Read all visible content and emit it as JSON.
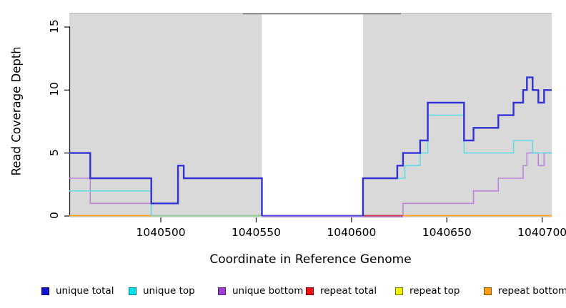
{
  "chart_data": {
    "type": "line",
    "subtype": "step-coverage",
    "xlabel": "Coordinate in Reference Genome",
    "ylabel": "Read Coverage Depth",
    "xlim": [
      1040452,
      1040705
    ],
    "ylim": [
      0,
      16
    ],
    "grid": false,
    "x_ticks": [
      1040500,
      1040550,
      1040600,
      1040650,
      1040700
    ],
    "x_tick_labels": [
      "1040500",
      "1040550",
      "1040600",
      "1040650",
      "1040700"
    ],
    "y_ticks": [
      0,
      5,
      10,
      15
    ],
    "y_tick_labels": [
      "0",
      "5",
      "10",
      "15"
    ],
    "covered_region_color": "#d9d9d9",
    "coverage_gap": {
      "x1": 1040553,
      "x2": 1040606
    },
    "top_edge_line_color": "#c4c4c4",
    "top_dark_segment": {
      "x1": 1040543,
      "x2": 1040626,
      "color": "#8a8a8a"
    },
    "series": [
      {
        "name": "unique total",
        "color": "#3232d8",
        "width": 2.4,
        "steps": [
          [
            1040452,
            5
          ],
          [
            1040463,
            3
          ],
          [
            1040495,
            1
          ],
          [
            1040509,
            4
          ],
          [
            1040512,
            3
          ],
          [
            1040553,
            0
          ],
          [
            1040606,
            3
          ],
          [
            1040624,
            4
          ],
          [
            1040627,
            5
          ],
          [
            1040636,
            6
          ],
          [
            1040640,
            9
          ],
          [
            1040659,
            6
          ],
          [
            1040664,
            7
          ],
          [
            1040677,
            8
          ],
          [
            1040685,
            9
          ],
          [
            1040690,
            10
          ],
          [
            1040692,
            11
          ],
          [
            1040695,
            10
          ],
          [
            1040698,
            9
          ],
          [
            1040701,
            10
          ],
          [
            1040705,
            10
          ]
        ]
      },
      {
        "name": "unique top",
        "color": "#60dce4",
        "width": 1.6,
        "steps": [
          [
            1040452,
            2
          ],
          [
            1040495,
            0
          ],
          [
            1040606,
            3
          ],
          [
            1040628,
            4
          ],
          [
            1040636,
            5
          ],
          [
            1040640,
            8
          ],
          [
            1040659,
            5
          ],
          [
            1040685,
            6
          ],
          [
            1040695,
            5
          ],
          [
            1040705,
            5
          ]
        ]
      },
      {
        "name": "unique bottom",
        "color": "#bd84d8",
        "width": 1.6,
        "steps": [
          [
            1040452,
            3
          ],
          [
            1040463,
            1
          ],
          [
            1040509,
            4
          ],
          [
            1040512,
            3
          ],
          [
            1040553,
            0
          ],
          [
            1040627,
            1
          ],
          [
            1040664,
            2
          ],
          [
            1040677,
            3
          ],
          [
            1040690,
            4
          ],
          [
            1040692,
            5
          ],
          [
            1040698,
            4
          ],
          [
            1040701,
            5
          ],
          [
            1040705,
            5
          ]
        ]
      },
      {
        "name": "repeat total",
        "color": "#e32222",
        "width": 1.6,
        "steps": [
          [
            1040452,
            0
          ],
          [
            1040705,
            0
          ]
        ]
      },
      {
        "name": "repeat top",
        "color": "#e8e832",
        "width": 1.6,
        "steps": [
          [
            1040452,
            0
          ],
          [
            1040705,
            0
          ]
        ]
      },
      {
        "name": "repeat bottom",
        "color": "#ffa125",
        "width": 2,
        "steps": [
          [
            1040452,
            0
          ],
          [
            1040705,
            0
          ]
        ]
      }
    ],
    "baseline_segments": [
      {
        "x1": 1040452,
        "x2": 1040495,
        "color": "#ffa125",
        "color2": null
      },
      {
        "x1": 1040495,
        "x2": 1040553,
        "color": "#8ecd8e",
        "color2": null
      },
      {
        "x1": 1040553,
        "x2": 1040606,
        "color": "#4d48d9",
        "color2": "#bd84d8"
      },
      {
        "x1": 1040606,
        "x2": 1040627,
        "color": "#cf3a55",
        "color2": "#b06fd0"
      },
      {
        "x1": 1040627,
        "x2": 1040705,
        "color": "#ffa125",
        "color2": null
      }
    ],
    "legend": {
      "position": "bottom",
      "entries": [
        {
          "label": "unique total",
          "fill": "#1414cc",
          "border": "#000066"
        },
        {
          "label": "unique top",
          "fill": "#00e0e8",
          "border": "#008898"
        },
        {
          "label": "unique bottom",
          "fill": "#a03fd4",
          "border": "#5c1f80"
        },
        {
          "label": "repeat total",
          "fill": "#ee1111",
          "border": "#7a0000"
        },
        {
          "label": "repeat top",
          "fill": "#f2f200",
          "border": "#7a7a00"
        },
        {
          "label": "repeat bottom",
          "fill": "#ff9d12",
          "border": "#8a5200"
        }
      ]
    }
  },
  "layout_hints": {
    "axis_color": "#222222",
    "tick_label_color": "#000000"
  }
}
